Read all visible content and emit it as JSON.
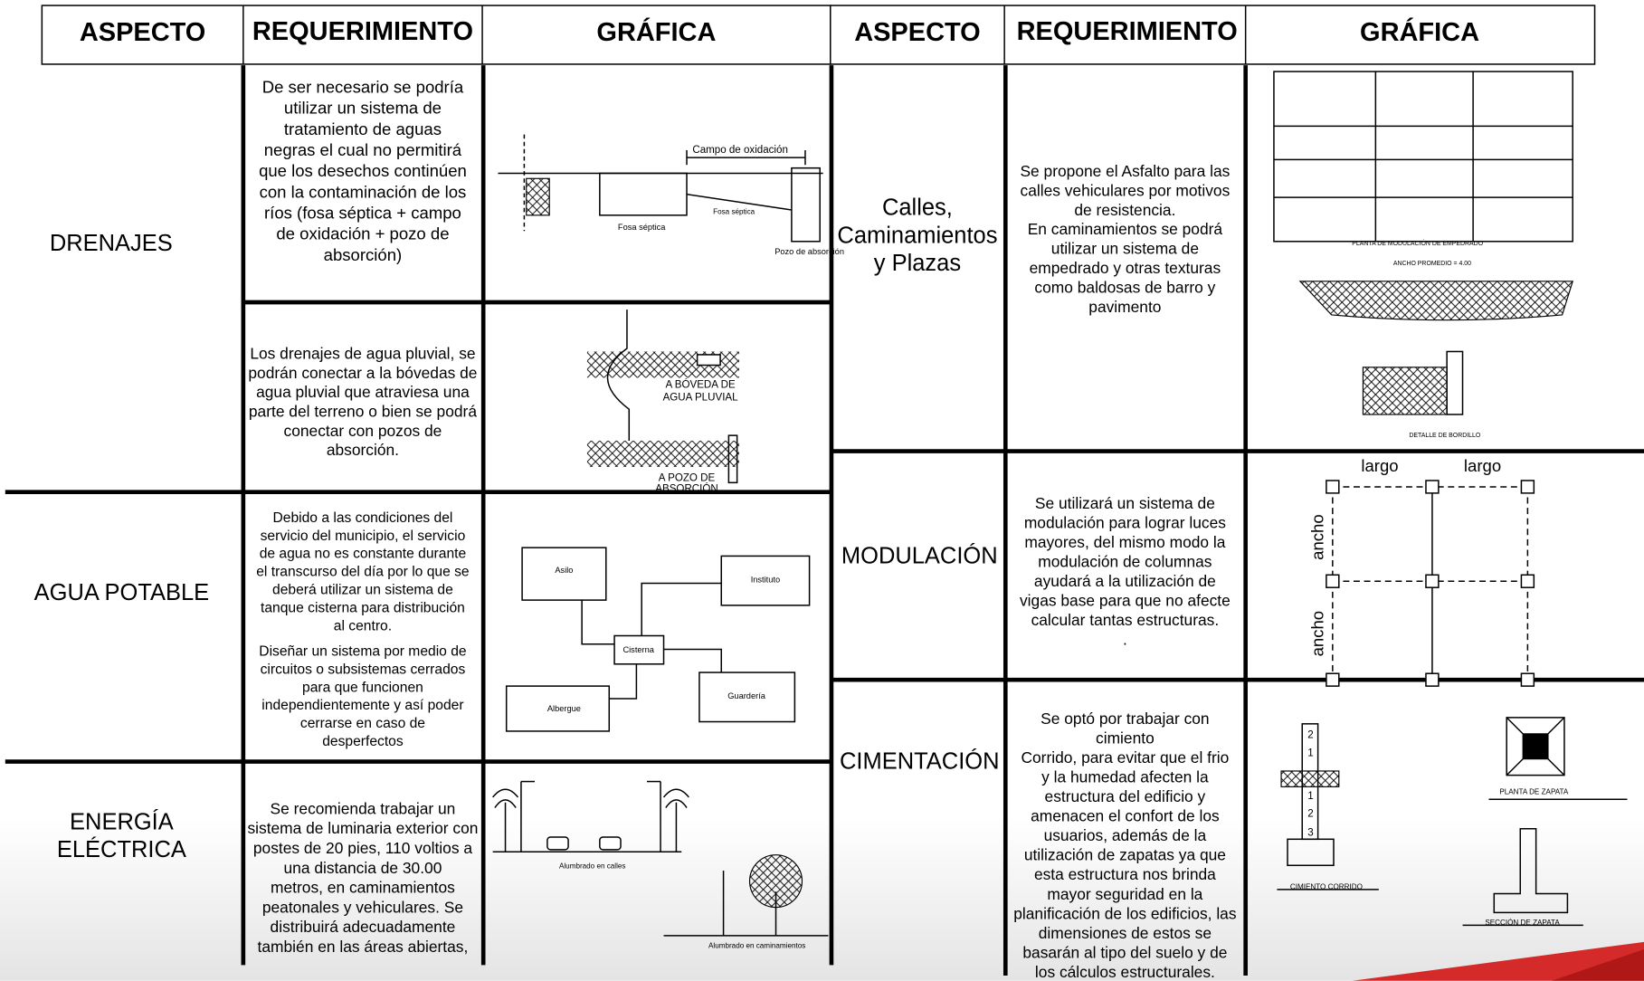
{
  "header": {
    "columns": [
      "ASPECTO",
      "REQUERIMIENTO",
      "GRÁFICA",
      "ASPECTO",
      "REQUERIMIENTO",
      "GRÁFICA"
    ]
  },
  "rows": [
    {
      "aspect": [
        "DRENAJES"
      ],
      "requirement": [
        "De ser necesario se podría",
        "utilizar un sistema de",
        "tratamiento de aguas",
        "negras el  cual no permitirá",
        "que los desechos continúen",
        "con la contaminación de los",
        "ríos (fosa séptica + campo",
        "de oxidación + pozo de",
        "absorción)"
      ],
      "graphic_labels": [
        "Campo de oxidación",
        "Fosa séptica",
        "Fosa séptica",
        "Pozo de absorción"
      ]
    },
    {
      "requirement": [
        "Los drenajes de agua pluvial, se",
        "podrán conectar a la bóvedas de",
        "agua pluvial que atraviesa una",
        "parte del terreno o bien se podrá",
        "conectar con pozos de",
        "absorción."
      ],
      "graphic_labels": [
        "A BÓVEDA DE",
        "AGUA PLUVIAL",
        "A POZO DE",
        "ABSORCIÓN"
      ]
    },
    {
      "aspect": [
        "AGUA POTABLE"
      ],
      "requirement": [
        "Debido a las condiciones del",
        "servicio del municipio, el servicio",
        "de agua no es constante durante",
        "el transcurso del día por lo que se",
        "deberá utilizar un sistema de",
        "tanque cisterna para distribución",
        "al centro.",
        "Diseñar un sistema por medio de",
        "circuitos o subsistemas cerrados",
        "para que funcionen",
        "independientemente y así poder",
        "cerrarse en caso de",
        "desperfectos"
      ],
      "graphic_labels": [
        "Asilo",
        "Instituto",
        "Cisterna",
        "Albergue",
        "Guardería"
      ]
    },
    {
      "aspect": [
        "ENERGÍA",
        "ELÉCTRICA"
      ],
      "requirement": [
        "Se recomienda trabajar un",
        "sistema de luminaria exterior con",
        "postes de 20 pies, 110 voltios a",
        "una distancia de 30.00",
        "metros, en caminamientos",
        "peatonales y vehiculares. Se",
        "distribuirá adecuadamente",
        "también en las áreas abiertas,"
      ],
      "graphic_labels": [
        "Alumbrado en calles",
        "Alumbrado en caminamientos"
      ]
    },
    {
      "aspect": [
        "Calles,",
        "Caminamientos",
        "y  Plazas"
      ],
      "requirement": [
        "Se propone el Asfalto para las",
        "calles vehiculares por motivos",
        "de resistencia.",
        "En caminamientos se podrá",
        "utilizar un sistema de",
        "empedrado y otras texturas",
        "como baldosas de barro y",
        "pavimento"
      ],
      "graphic_labels": [
        "PLANTA DE MODULACIÓN DE EMPEDRADO",
        "ANCHO PROMEDIO = 4.00",
        "DETALLE DE BORDILLO"
      ]
    },
    {
      "aspect": [
        "MODULACIÓN"
      ],
      "requirement": [
        "Se utilizará un sistema de",
        "modulación para lograr luces",
        "mayores, del mismo modo la",
        "modulación de columnas",
        "ayudará a la utilización de",
        "vigas base para que no afecte",
        "calcular tantas estructuras.",
        "."
      ],
      "graphic_labels": [
        "largo",
        "largo",
        "ancho",
        "ancho"
      ]
    },
    {
      "aspect": [
        "CIMENTACIÓN"
      ],
      "requirement": [
        "Se optó por trabajar con",
        "cimiento",
        "Corrido, para evitar que el frio",
        "y la humedad afecten la",
        "estructura del edificio y",
        "amenacen el confort de los",
        "usuarios, además de la",
        "utilización de zapatas ya que",
        "esta estructura nos brinda",
        "mayor seguridad en la",
        "planificación de los edificios, las",
        "dimensiones de estos se",
        "basarán al tipo del suelo y de",
        "los cálculos estructurales."
      ],
      "graphic_labels": [
        "2",
        "1",
        "1",
        "2",
        "3",
        "PLANTA DE ZAPATA",
        "CIMIENTO CORRIDO",
        "SECCIÓN DE ZAPATA"
      ]
    }
  ]
}
